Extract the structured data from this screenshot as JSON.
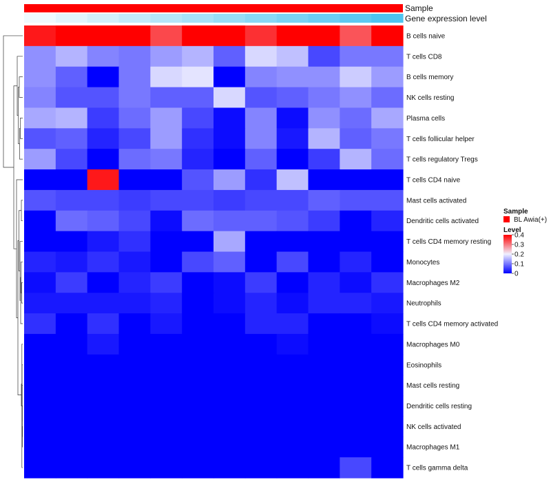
{
  "chart_data": {
    "type": "heatmap",
    "annotations": [
      {
        "name": "Sample",
        "color": "#ff0000"
      },
      {
        "name": "Gene expression level",
        "values": [
          0.05,
          0.1,
          0.15,
          0.2,
          0.25,
          0.3,
          0.35,
          0.4,
          0.45,
          0.5,
          0.55,
          0.6
        ],
        "color_low": "#ffffff",
        "color_high": "#4ec4f0"
      }
    ],
    "rows": [
      "B cells naive",
      "T cells CD8",
      "B cells memory",
      "NK cells resting",
      "Plasma cells",
      "T cells follicular helper",
      "T cells regulatory  Tregs",
      "T cells CD4 naive",
      "Mast cells activated",
      "Dendritic cells activated",
      "T cells CD4 memory resting",
      "Monocytes",
      "Macrophages M2",
      "Neutrophils",
      "T cells CD4 memory activated",
      "Macrophages M0",
      "Eosinophils",
      "Mast cells resting",
      "Dendritic cells resting",
      "NK cells activated",
      "Macrophages M1",
      "T cells gamma delta"
    ],
    "values": [
      [
        0.38,
        0.44,
        0.44,
        0.46,
        0.34,
        0.41,
        0.46,
        0.36,
        0.46,
        0.41,
        0.33,
        0.41
      ],
      [
        0.12,
        0.15,
        0.11,
        0.1,
        0.13,
        0.15,
        0.08,
        0.18,
        0.16,
        0.06,
        0.1,
        0.1
      ],
      [
        0.12,
        0.08,
        0.0,
        0.1,
        0.18,
        0.19,
        0.0,
        0.11,
        0.12,
        0.12,
        0.17,
        0.13
      ],
      [
        0.11,
        0.07,
        0.07,
        0.1,
        0.08,
        0.08,
        0.18,
        0.07,
        0.08,
        0.1,
        0.12,
        0.09
      ],
      [
        0.14,
        0.15,
        0.05,
        0.09,
        0.13,
        0.06,
        0.01,
        0.11,
        0.01,
        0.12,
        0.09,
        0.14
      ],
      [
        0.07,
        0.08,
        0.03,
        0.06,
        0.13,
        0.04,
        0.01,
        0.11,
        0.02,
        0.15,
        0.08,
        0.1
      ],
      [
        0.13,
        0.06,
        0.0,
        0.09,
        0.1,
        0.03,
        0.0,
        0.08,
        0.0,
        0.05,
        0.15,
        0.09
      ],
      [
        0.0,
        0.0,
        0.38,
        0.0,
        0.0,
        0.07,
        0.13,
        0.04,
        0.16,
        0.0,
        0.0,
        0.0
      ],
      [
        0.07,
        0.06,
        0.06,
        0.05,
        0.06,
        0.06,
        0.05,
        0.06,
        0.06,
        0.08,
        0.07,
        0.07
      ],
      [
        0.0,
        0.09,
        0.08,
        0.06,
        0.01,
        0.09,
        0.08,
        0.08,
        0.07,
        0.05,
        0.0,
        0.03
      ],
      [
        0.0,
        0.0,
        0.02,
        0.04,
        0.0,
        0.0,
        0.14,
        0.0,
        0.0,
        0.0,
        0.0,
        0.0
      ],
      [
        0.03,
        0.02,
        0.04,
        0.02,
        0.0,
        0.06,
        0.08,
        0.0,
        0.06,
        0.0,
        0.03,
        0.0
      ],
      [
        0.01,
        0.05,
        0.0,
        0.03,
        0.05,
        0.0,
        0.01,
        0.05,
        0.0,
        0.03,
        0.01,
        0.04
      ],
      [
        0.02,
        0.02,
        0.02,
        0.02,
        0.03,
        0.0,
        0.01,
        0.03,
        0.01,
        0.03,
        0.03,
        0.02
      ],
      [
        0.04,
        0.0,
        0.04,
        0.0,
        0.02,
        0.0,
        0.0,
        0.03,
        0.03,
        0.0,
        0.0,
        0.01
      ],
      [
        0.0,
        0.0,
        0.02,
        0.0,
        0.0,
        0.0,
        0.0,
        0.0,
        0.01,
        0.0,
        0.0,
        0.0
      ],
      [
        0.0,
        0.0,
        0.0,
        0.0,
        0.0,
        0.0,
        0.0,
        0.0,
        0.0,
        0.0,
        0.0,
        0.0
      ],
      [
        0.0,
        0.0,
        0.0,
        0.0,
        0.0,
        0.0,
        0.0,
        0.0,
        0.0,
        0.0,
        0.0,
        0.0
      ],
      [
        0.0,
        0.0,
        0.0,
        0.0,
        0.0,
        0.0,
        0.0,
        0.0,
        0.0,
        0.0,
        0.0,
        0.0
      ],
      [
        0.0,
        0.0,
        0.0,
        0.0,
        0.0,
        0.0,
        0.0,
        0.0,
        0.0,
        0.0,
        0.0,
        0.0
      ],
      [
        0.0,
        0.0,
        0.0,
        0.0,
        0.0,
        0.0,
        0.0,
        0.0,
        0.0,
        0.0,
        0.0,
        0.0
      ],
      [
        0.0,
        0.0,
        0.0,
        0.0,
        0.0,
        0.0,
        0.0,
        0.0,
        0.0,
        0.0,
        0.06,
        0.0
      ]
    ],
    "color_scale": {
      "stops": [
        {
          "value": 0.0,
          "color": "#0000ff"
        },
        {
          "value": 0.2,
          "color": "#f0f0ff"
        },
        {
          "value": 0.4,
          "color": "#ff0000"
        }
      ]
    },
    "legend": {
      "placement": "right",
      "sample_title": "Sample",
      "sample_entry": "BL Awia(+)",
      "sample_color": "#ff0000",
      "level_title": "Level",
      "level_ticks": [
        {
          "value": 0.4,
          "label": "0.4"
        },
        {
          "value": 0.3,
          "label": "0.3"
        },
        {
          "value": 0.2,
          "label": "0.2"
        },
        {
          "value": 0.1,
          "label": "0.1"
        },
        {
          "value": 0.0,
          "label": "0"
        }
      ]
    },
    "row_dendrogram": true
  }
}
